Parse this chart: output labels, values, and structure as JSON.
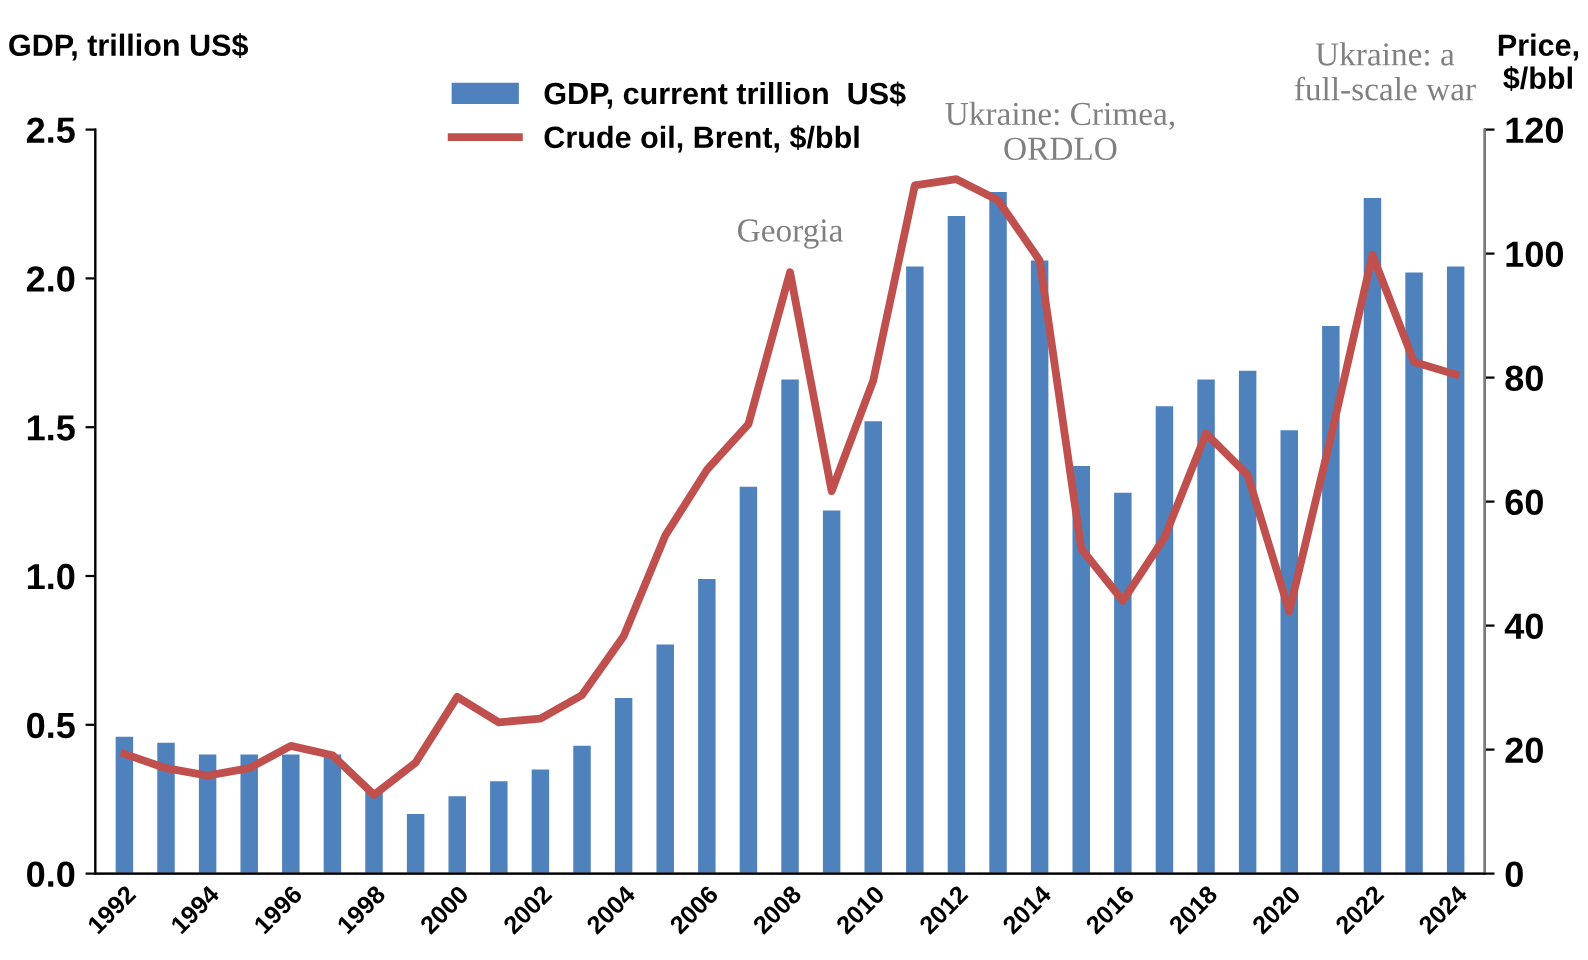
{
  "chart_data": {
    "type": "bar",
    "ylabel": "GDP, trillion US$",
    "y2label": "Price,\n$/bbl",
    "categories": [
      "1992",
      null,
      "1994",
      null,
      "1996",
      null,
      "1998",
      null,
      "2000",
      null,
      "2002",
      null,
      "2004",
      null,
      "2006",
      null,
      "2008",
      null,
      "2010",
      null,
      "2012",
      null,
      "2014",
      null,
      "2016",
      null,
      "2018",
      null,
      "2020",
      null,
      "2022",
      null,
      "2024"
    ],
    "series": [
      {
        "name": "GDP, current trillion  US$",
        "color": "#4f81bd",
        "values": [
          0.46,
          0.44,
          0.4,
          0.4,
          0.4,
          0.4,
          0.28,
          0.2,
          0.26,
          0.31,
          0.35,
          0.43,
          0.59,
          0.77,
          0.99,
          1.3,
          1.66,
          1.22,
          1.52,
          2.04,
          2.21,
          2.29,
          2.06,
          1.37,
          1.28,
          1.57,
          1.66,
          1.69,
          1.49,
          1.84,
          2.27,
          2.02,
          2.04
        ]
      },
      {
        "name": "Crude oil, Brent, $/bbl",
        "type": "line",
        "axis": "y2",
        "color": "#c0504d",
        "values": [
          19.3,
          17,
          15.8,
          17,
          20.6,
          19.1,
          12.7,
          17.9,
          28.5,
          24.4,
          25,
          28.8,
          38.3,
          54.5,
          65.1,
          72.5,
          97,
          61.7,
          79.5,
          111,
          112,
          108.6,
          98.9,
          52.4,
          44,
          54.2,
          71,
          64.3,
          42.3,
          70.4,
          99.8,
          82.5,
          80.5
        ]
      }
    ],
    "ylim": [
      0,
      2.5
    ],
    "yticks": [
      {
        "value": 0,
        "label": "0.0"
      },
      {
        "value": 0.5,
        "label": "0.5"
      },
      {
        "value": 1,
        "label": "1.0"
      },
      {
        "value": 1.5,
        "label": "1.5"
      },
      {
        "value": 2,
        "label": "2.0"
      },
      {
        "value": 2.5,
        "label": "2.5"
      }
    ],
    "y2lim": [
      0,
      120
    ],
    "y2ticks": [
      0,
      20,
      40,
      60,
      80,
      100,
      120
    ],
    "annotations": [
      "Georgia",
      "Ukraine: Crimea,\nORDLO",
      "Ukraine: a\nfull-scale war"
    ],
    "legend": "top",
    "grid": false,
    "line_style": "solid",
    "marker": "none"
  }
}
